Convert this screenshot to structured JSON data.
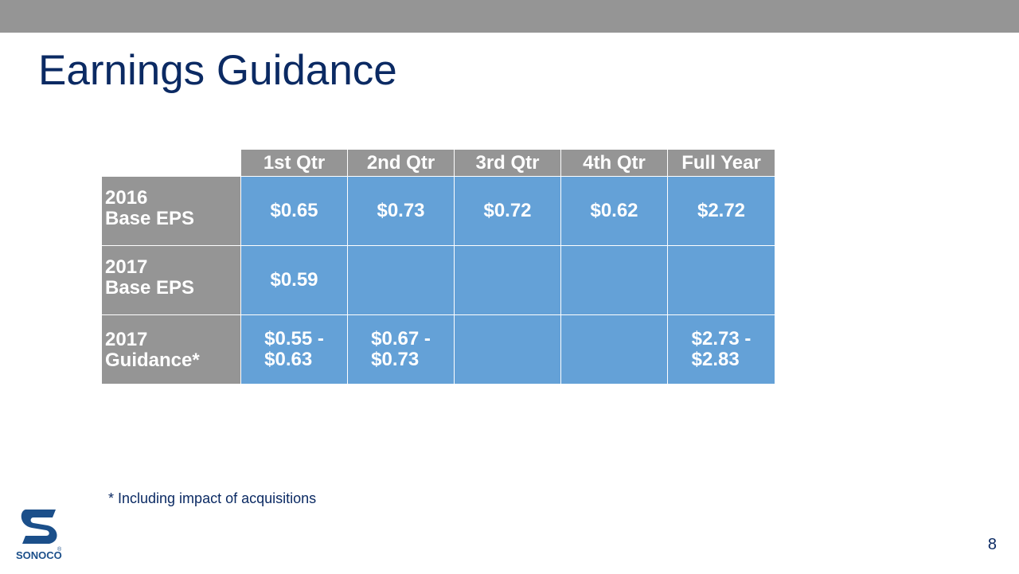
{
  "slide": {
    "title": "Earnings Guidance",
    "footnote": "* Including impact of acquisitions",
    "page_number": "8"
  },
  "table": {
    "headers": [
      "1st Qtr",
      "2nd Qtr",
      "3rd Qtr",
      "4th Qtr",
      "Full Year"
    ],
    "rows": [
      {
        "label": "2016\nBase EPS",
        "cells": [
          "$0.65",
          "$0.73",
          "$0.72",
          "$0.62",
          "$2.72"
        ]
      },
      {
        "label": "2017\nBase EPS",
        "cells": [
          "$0.59",
          "",
          "",
          "",
          ""
        ]
      },
      {
        "label": "2017\nGuidance*",
        "cells": [
          "$0.55 -\n$0.63",
          "$0.67 -\n$0.73",
          "",
          "",
          "$2.73 -\n$2.83"
        ]
      }
    ]
  },
  "logo": {
    "icon": "sonoco-logo",
    "text": "SONOCO",
    "mark": "®"
  },
  "colors": {
    "title": "#0b2a63",
    "header_gray": "#959595",
    "cell_blue": "#64a1d7"
  }
}
